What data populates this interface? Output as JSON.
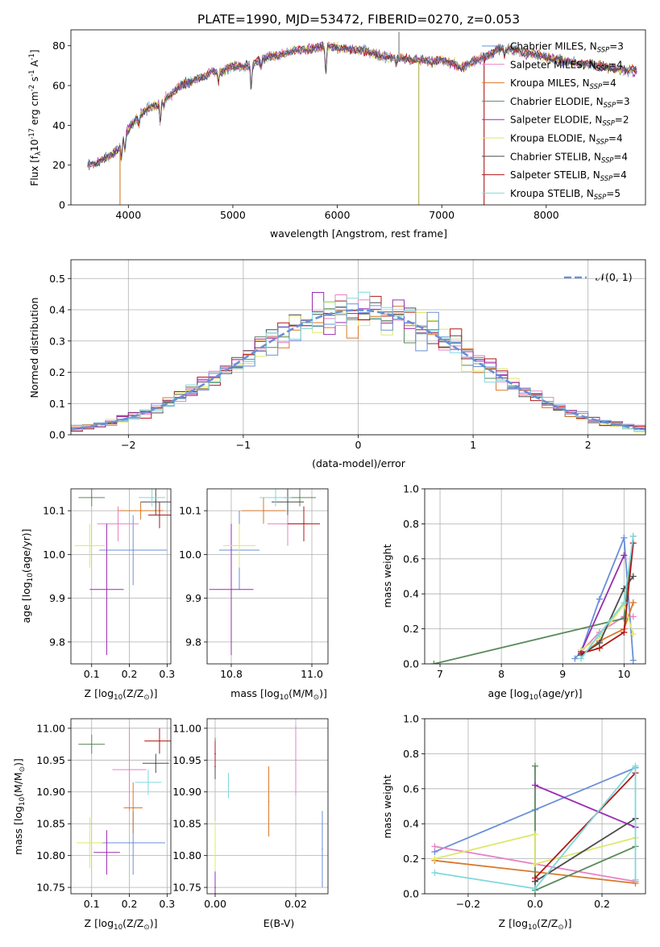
{
  "figure": {
    "title": "PLATE=1990, MJD=53472, FIBERID=0270, z=0.053"
  },
  "model_names": [
    "Chabrier MILES",
    "Salpeter MILES",
    "Kroupa MILES",
    "Chabrier ELODIE",
    "Salpeter ELODIE",
    "Kroupa ELODIE",
    "Chabrier STELIB",
    "Salpeter STELIB",
    "Kroupa STELIB"
  ],
  "model_nssp": [
    "3",
    "4",
    "4",
    "3",
    "2",
    "4",
    "4",
    "4",
    "5"
  ],
  "model_colors": [
    "#6a8fd8",
    "#e882c4",
    "#d9782a",
    "#5b8a5b",
    "#9a2fb0",
    "#dfe86a",
    "#4d4d4d",
    "#b01818",
    "#7fd8dc"
  ],
  "chart_data": [
    {
      "type": "line",
      "name": "spectrum",
      "title": "PLATE=1990, MJD=53472, FIBERID=0270, z=0.053",
      "xlabel": "wavelength [Angstrom, rest frame]",
      "ylabel": "Flux [f",
      "ylabel_sub": "λ",
      "ylabel_rest": "10",
      "ylabel_sup1": "-17",
      "ylabel_rest2": " erg cm",
      "ylabel_sup2": "-2",
      "ylabel_rest3": " s",
      "ylabel_sup3": "-1",
      "ylabel_rest4": " A",
      "ylabel_sup4": "-1",
      "ylabel_end": "]",
      "xlim": [
        3450,
        8950
      ],
      "ylim": [
        0,
        88
      ],
      "xticks": [
        4000,
        5000,
        6000,
        7000,
        8000
      ],
      "yticks": [
        0,
        20,
        40,
        60,
        80
      ],
      "legend_position": "upper right",
      "legend_label_prefix": "N",
      "legend_label_sub": "SSP",
      "continuum": {
        "x": [
          3600,
          3700,
          3800,
          3900,
          4000,
          4100,
          4200,
          4300,
          4400,
          4500,
          4600,
          4700,
          4800,
          4900,
          5000,
          5100,
          5200,
          5300,
          5400,
          5500,
          5600,
          5700,
          5800,
          5900,
          6000,
          6100,
          6200,
          6300,
          6400,
          6500,
          6600,
          6700,
          6800,
          6900,
          7000,
          7100,
          7200,
          7300,
          7400,
          7500,
          7600,
          7700,
          7800,
          7900,
          8000,
          8100,
          8200,
          8300,
          8400,
          8500,
          8600,
          8700,
          8800,
          8900
        ],
        "y": [
          20,
          21,
          24,
          28,
          38,
          45,
          49,
          51,
          55,
          60,
          62,
          64,
          67,
          67,
          70,
          69,
          71,
          74,
          75,
          76,
          78,
          78,
          79,
          80,
          79,
          78,
          78,
          77,
          75,
          74,
          74,
          73,
          73,
          72,
          73,
          71,
          69,
          72,
          74,
          77,
          79,
          78,
          76,
          76,
          74,
          73,
          72,
          71,
          71,
          70,
          69,
          68,
          68,
          67
        ]
      },
      "absorption": [
        {
          "x": 3934,
          "depth": 9
        },
        {
          "x": 3968,
          "depth": 7
        },
        {
          "x": 4102,
          "depth": 5
        },
        {
          "x": 4305,
          "depth": 10
        },
        {
          "x": 4340,
          "depth": 4
        },
        {
          "x": 4861,
          "depth": 4
        },
        {
          "x": 5175,
          "depth": 12
        },
        {
          "x": 5270,
          "depth": 4
        },
        {
          "x": 5890,
          "depth": 14
        },
        {
          "x": 6563,
          "depth": 3
        },
        {
          "x": 7600,
          "depth": 4
        }
      ],
      "artifacts": [
        {
          "x": 3920,
          "to": 0,
          "color": "#d9782a"
        },
        {
          "x": 6780,
          "to": 0,
          "color": "#b0b050"
        },
        {
          "x": 7405,
          "to": 0,
          "color": "#b01818"
        },
        {
          "x": 6590,
          "to": 87,
          "color": "#7a7a7a"
        }
      ]
    },
    {
      "type": "histogram",
      "name": "residuals",
      "xlabel": "(data-model)/error",
      "ylabel": "Normed distribution",
      "xlim": [
        -2.5,
        2.5
      ],
      "ylim": [
        0,
        0.56
      ],
      "xticks": [
        -2,
        -1,
        0,
        1,
        2
      ],
      "yticks": [
        0.0,
        0.1,
        0.2,
        0.3,
        0.4,
        0.5
      ],
      "legend_position": "upper right",
      "legend_label": "𝒩(0, 1)",
      "bin_width": 0.1
    },
    {
      "type": "scatter",
      "name": "age-vs-z",
      "xlabel": "Z [log",
      "xlabel_sub": "10",
      "xlabel_rest": "(Z/Z",
      "xlabel_sub2": "⊙",
      "xlabel_end": ")]",
      "ylabel": "age  [log",
      "ylabel_sub": "10",
      "ylabel_rest": "(age/yr)]",
      "xlim": [
        0.045,
        0.31
      ],
      "ylim": [
        9.75,
        10.15
      ],
      "xticks": [
        0.1,
        0.2,
        0.3
      ],
      "yticks": [
        9.8,
        9.9,
        10.0,
        10.1
      ],
      "points": [
        {
          "x": 0.21,
          "xerr": 0.09,
          "y": 10.01,
          "yerr": 0.08
        },
        {
          "x": 0.17,
          "xerr": 0.055,
          "y": 10.07,
          "yerr": 0.04
        },
        {
          "x": 0.23,
          "xerr": 0.06,
          "y": 10.1,
          "yerr": 0.02
        },
        {
          "x": 0.1,
          "xerr": 0.035,
          "y": 10.13,
          "yerr": 0.02
        },
        {
          "x": 0.14,
          "xerr": 0.045,
          "y": 9.92,
          "yerr": 0.15
        },
        {
          "x": 0.095,
          "xerr": 0.04,
          "y": 10.02,
          "yerr": 0.05
        },
        {
          "x": 0.27,
          "xerr": 0.04,
          "y": 10.12,
          "yerr": 0.03
        },
        {
          "x": 0.28,
          "xerr": 0.03,
          "y": 10.09,
          "yerr": 0.03
        },
        {
          "x": 0.26,
          "xerr": 0.035,
          "y": 10.13,
          "yerr": 0.02
        }
      ]
    },
    {
      "type": "scatter",
      "name": "age-vs-mass",
      "xlabel": "mass [log",
      "xlabel_sub": "10",
      "xlabel_rest": "(M/M",
      "xlabel_sub2": "⊙",
      "xlabel_end": ")]",
      "xlim": [
        10.74,
        11.04
      ],
      "ylim": [
        9.75,
        10.15
      ],
      "xticks": [
        10.8,
        11.0
      ],
      "yticks": [
        9.8,
        9.9,
        10.0,
        10.1
      ],
      "points": [
        {
          "x": 10.82,
          "xerr": 0.05,
          "y": 10.01,
          "yerr": 0.09
        },
        {
          "x": 10.94,
          "xerr": 0.05,
          "y": 10.07,
          "yerr": 0.05
        },
        {
          "x": 10.88,
          "xerr": 0.055,
          "y": 10.1,
          "yerr": 0.03
        },
        {
          "x": 10.97,
          "xerr": 0.04,
          "y": 10.13,
          "yerr": 0.02
        },
        {
          "x": 10.8,
          "xerr": 0.055,
          "y": 9.92,
          "yerr": 0.15
        },
        {
          "x": 10.82,
          "xerr": 0.04,
          "y": 10.02,
          "yerr": 0.05
        },
        {
          "x": 10.94,
          "xerr": 0.04,
          "y": 10.12,
          "yerr": 0.03
        },
        {
          "x": 10.98,
          "xerr": 0.04,
          "y": 10.07,
          "yerr": 0.04
        },
        {
          "x": 10.91,
          "xerr": 0.04,
          "y": 10.13,
          "yerr": 0.02
        }
      ]
    },
    {
      "type": "line",
      "name": "mass-weight-vs-age",
      "xlabel": "age  [log",
      "xlabel_sub": "10",
      "xlabel_rest": "(age/yr)]",
      "ylabel": "mass weight",
      "xlim": [
        6.75,
        10.35
      ],
      "ylim": [
        0,
        1.0
      ],
      "xticks": [
        7,
        8,
        9,
        10
      ],
      "yticks": [
        0.0,
        0.2,
        0.4,
        0.6,
        0.8,
        1.0
      ],
      "series": [
        {
          "x": [
            9.2,
            9.3,
            9.6,
            10.0,
            10.15
          ],
          "y": [
            0.03,
            0.07,
            0.37,
            0.72,
            0.02
          ]
        },
        {
          "x": [
            9.3,
            9.6,
            10.0,
            10.15
          ],
          "y": [
            0.07,
            0.18,
            0.27,
            0.27
          ]
        },
        {
          "x": [
            9.3,
            9.6,
            10.0,
            10.15
          ],
          "y": [
            0.05,
            0.13,
            0.2,
            0.35
          ]
        },
        {
          "x": [
            6.9,
            10.0,
            10.15
          ],
          "y": [
            0.0,
            0.26,
            0.73
          ]
        },
        {
          "x": [
            9.3,
            10.0
          ],
          "y": [
            0.07,
            0.62
          ]
        },
        {
          "x": [
            9.3,
            9.6,
            10.0,
            10.15
          ],
          "y": [
            0.08,
            0.15,
            0.34,
            0.17
          ]
        },
        {
          "x": [
            9.3,
            9.6,
            10.0,
            10.15
          ],
          "y": [
            0.05,
            0.12,
            0.43,
            0.5
          ]
        },
        {
          "x": [
            9.3,
            9.6,
            10.0,
            10.15
          ],
          "y": [
            0.06,
            0.09,
            0.18,
            0.69
          ]
        },
        {
          "x": [
            9.3,
            9.6,
            10.0,
            10.15
          ],
          "y": [
            0.03,
            0.17,
            0.35,
            0.73
          ]
        }
      ]
    },
    {
      "type": "scatter",
      "name": "mass-vs-z",
      "xlabel": "Z [log",
      "xlabel_sub": "10",
      "xlabel_rest": "(Z/Z",
      "xlabel_sub2": "⊙",
      "xlabel_end": ")]",
      "ylabel": "mass [log",
      "ylabel_sub": "10",
      "ylabel_rest": "(M/M",
      "ylabel_sub2": "⊙",
      "ylabel_end": ")]",
      "xlim": [
        0.045,
        0.31
      ],
      "ylim": [
        10.74,
        11.015
      ],
      "xticks": [
        0.1,
        0.2,
        0.3
      ],
      "yticks": [
        10.75,
        10.8,
        10.85,
        10.9,
        10.95,
        11.0
      ],
      "points": [
        {
          "x": 0.21,
          "xerr": 0.085,
          "y": 10.82,
          "yerr": 0.05
        },
        {
          "x": 0.2,
          "xerr": 0.045,
          "y": 10.935,
          "yerr": 0.065
        },
        {
          "x": 0.21,
          "xerr": 0.025,
          "y": 10.875,
          "yerr": 0.04
        },
        {
          "x": 0.1,
          "xerr": 0.035,
          "y": 10.975,
          "yerr": 0.015
        },
        {
          "x": 0.14,
          "xerr": 0.035,
          "y": 10.805,
          "yerr": 0.035
        },
        {
          "x": 0.095,
          "xerr": 0.035,
          "y": 10.82,
          "yerr": 0.04
        },
        {
          "x": 0.27,
          "xerr": 0.035,
          "y": 10.945,
          "yerr": 0.015
        },
        {
          "x": 0.28,
          "xerr": 0.04,
          "y": 10.98,
          "yerr": 0.02
        },
        {
          "x": 0.25,
          "xerr": 0.035,
          "y": 10.915,
          "yerr": 0.02
        }
      ]
    },
    {
      "type": "scatter",
      "name": "mass-vs-ebv",
      "xlabel": "E(B-V)",
      "xlim": [
        -0.002,
        0.028
      ],
      "ylim": [
        10.74,
        11.015
      ],
      "xticks": [
        0.0,
        0.02
      ],
      "yticks": [
        10.75,
        10.8,
        10.85,
        10.9,
        10.95,
        11.0
      ],
      "points": [
        {
          "x": 0.0266,
          "y": 10.81,
          "yerr": 0.06
        },
        {
          "x": 0.02,
          "y": 10.95,
          "yerr": 0.055
        },
        {
          "x": 0.0133,
          "y": 10.885,
          "yerr": 0.055
        },
        {
          "x": 0.0,
          "y": 10.96,
          "yerr": 0.025
        },
        {
          "x": 0.0,
          "y": 10.75,
          "yerr": 0.025
        },
        {
          "x": 0.0,
          "y": 10.815,
          "yerr": 0.04
        },
        {
          "x": 0.0,
          "y": 10.94,
          "yerr": 0.02
        },
        {
          "x": 0.0,
          "y": 10.96,
          "yerr": 0.02
        },
        {
          "x": 0.0033,
          "y": 10.91,
          "yerr": 0.02
        }
      ]
    },
    {
      "type": "line",
      "name": "mass-weight-vs-z",
      "xlabel": "Z [log",
      "xlabel_sub": "10",
      "xlabel_rest": "(Z/Z",
      "xlabel_sub2": "⊙",
      "xlabel_end": ")]",
      "ylabel": "mass weight",
      "xlim": [
        -0.33,
        0.33
      ],
      "ylim": [
        0,
        1.0
      ],
      "xticks": [
        -0.2,
        0.0,
        0.2
      ],
      "yticks": [
        0.0,
        0.2,
        0.4,
        0.6,
        0.8,
        1.0
      ],
      "series": [
        {
          "x": [
            -0.3,
            0.0,
            0.3
          ],
          "y": [
            0.24,
            0.48,
            0.72
          ]
        },
        {
          "x": [
            -0.3,
            0.3
          ],
          "y": [
            0.27,
            0.07
          ]
        },
        {
          "x": [
            -0.3,
            0.3
          ],
          "y": [
            0.19,
            0.06
          ]
        },
        {
          "x": [
            0.0,
            0.0,
            0.3
          ],
          "y": [
            0.73,
            0.02,
            0.27
          ]
        },
        {
          "x": [
            0.0,
            0.3
          ],
          "y": [
            0.62,
            0.38
          ]
        },
        {
          "x": [
            -0.3,
            0.0,
            0.0,
            0.3
          ],
          "y": [
            0.2,
            0.34,
            0.17,
            0.32
          ]
        },
        {
          "x": [
            0.0,
            0.3
          ],
          "y": [
            0.07,
            0.43
          ]
        },
        {
          "x": [
            0.0,
            0.3
          ],
          "y": [
            0.09,
            0.69
          ]
        },
        {
          "x": [
            -0.3,
            0.0,
            0.3,
            0.3
          ],
          "y": [
            0.12,
            0.03,
            0.73,
            0.08
          ]
        }
      ]
    }
  ]
}
